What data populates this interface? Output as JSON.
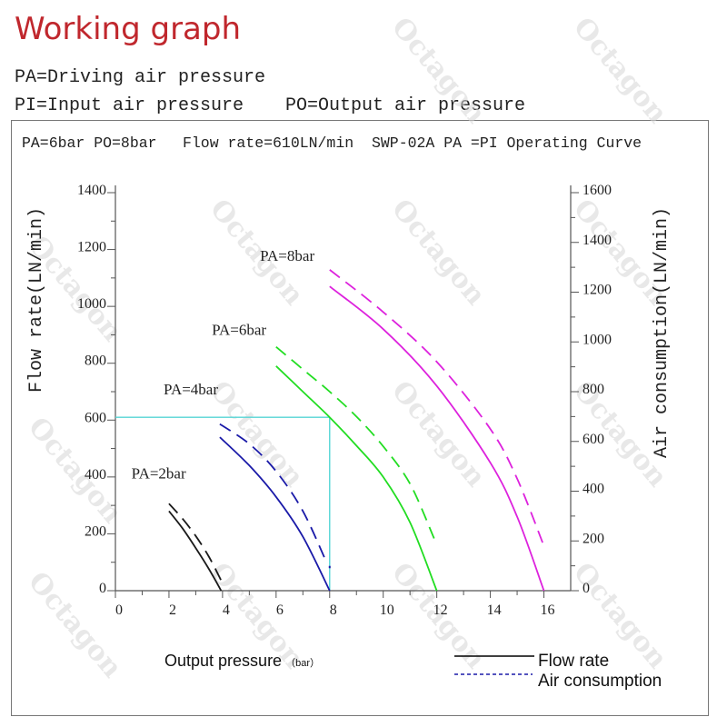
{
  "title": "Working graph",
  "definitions": {
    "pa": "PA=Driving air pressure",
    "pi": "PI=Input air pressure",
    "po": "PO=Output air pressure"
  },
  "watermark": "Octagon",
  "chart_data": {
    "type": "line",
    "header": {
      "condition": "PA=6bar PO=8bar",
      "flow": "Flow rate=610LN/min",
      "curve": "SWP-02A PA =PI Operating Curve"
    },
    "xlabel": "Output pressure",
    "xlabel_unit": "（bar）",
    "ylabel": "Flow rate(LN/min)",
    "y2label": "Air consumption(LN/min)",
    "xlim": [
      0,
      17
    ],
    "ylim": [
      0,
      1400
    ],
    "y2lim": [
      0,
      1600
    ],
    "x_ticks": [
      0,
      2,
      4,
      6,
      8,
      10,
      12,
      14,
      16
    ],
    "y_ticks": [
      0,
      200,
      400,
      600,
      800,
      1000,
      1200,
      1400
    ],
    "y2_ticks": [
      0,
      200,
      400,
      600,
      800,
      1000,
      1200,
      1400,
      1600
    ],
    "reference": {
      "x": 8,
      "y": 610
    },
    "legend": {
      "flow": "Flow rate",
      "air": "Air consumption",
      "position": "bottom-right"
    },
    "series": [
      {
        "pa_label": "PA=2bar",
        "color": "#1a1a1a",
        "label_x": 0.6,
        "label_y": 395,
        "flow": [
          [
            2,
            280
          ],
          [
            2.5,
            220
          ],
          [
            3,
            150
          ],
          [
            3.5,
            75
          ],
          [
            3.95,
            0
          ]
        ],
        "air": [
          [
            2,
            350
          ],
          [
            2.5,
            290
          ],
          [
            3,
            220
          ],
          [
            3.5,
            135
          ],
          [
            4,
            30
          ]
        ]
      },
      {
        "pa_label": "PA=4bar",
        "color": "#1a1aa8",
        "label_x": 1.8,
        "label_y": 690,
        "flow": [
          [
            3.9,
            540
          ],
          [
            5,
            440
          ],
          [
            6,
            330
          ],
          [
            7,
            190
          ],
          [
            8,
            0
          ]
        ],
        "air": [
          [
            3.9,
            670
          ],
          [
            5,
            590
          ],
          [
            6,
            480
          ],
          [
            7,
            320
          ],
          [
            7.9,
            110
          ]
        ],
        "air_end_point": [
          8,
          95
        ]
      },
      {
        "pa_label": "PA=6bar",
        "color": "#22dd22",
        "label_x": 3.6,
        "label_y": 900,
        "flow": [
          [
            6,
            790
          ],
          [
            7,
            700
          ],
          [
            8,
            610
          ],
          [
            9,
            510
          ],
          [
            10,
            400
          ],
          [
            11,
            240
          ],
          [
            12,
            0
          ]
        ],
        "air": [
          [
            6,
            980
          ],
          [
            7,
            890
          ],
          [
            8,
            800
          ],
          [
            9,
            700
          ],
          [
            10,
            580
          ],
          [
            11,
            430
          ],
          [
            11.9,
            210
          ]
        ]
      },
      {
        "pa_label": "PA=8bar",
        "color": "#dd22dd",
        "label_x": 5.4,
        "label_y": 1160,
        "flow": [
          [
            8,
            1070
          ],
          [
            10,
            920
          ],
          [
            12,
            720
          ],
          [
            14,
            450
          ],
          [
            15,
            260
          ],
          [
            16,
            0
          ]
        ],
        "air": [
          [
            8,
            1290
          ],
          [
            10,
            1120
          ],
          [
            12,
            920
          ],
          [
            14,
            650
          ],
          [
            15,
            450
          ],
          [
            16,
            180
          ]
        ]
      }
    ]
  }
}
